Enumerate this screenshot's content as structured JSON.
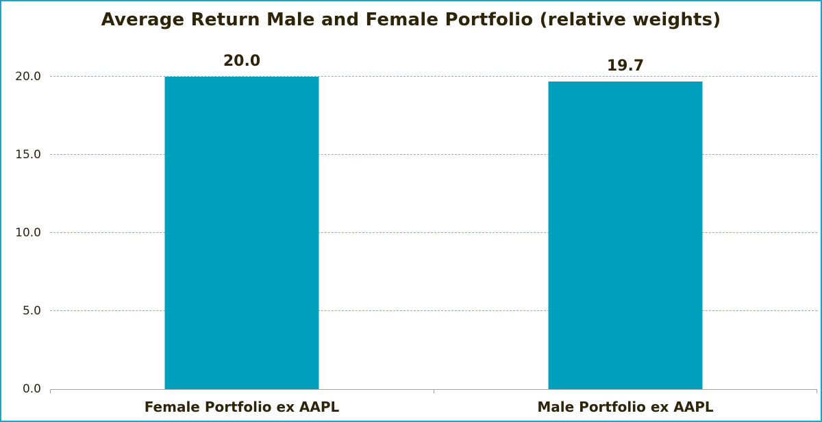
{
  "frame": {
    "border_color": "#18a6c7",
    "background_color": "#ffffff"
  },
  "chart_data": {
    "type": "bar",
    "title": "Average Return Male and Female Portfolio (relative weights)",
    "categories": [
      "Female Portfolio ex AAPL",
      "Male Portfolio ex AAPL"
    ],
    "values": [
      20.0,
      19.7
    ],
    "data_labels": [
      "20.0",
      "19.7"
    ],
    "y_tick_values": [
      0,
      5,
      10,
      15,
      20
    ],
    "y_tick_labels": [
      "0.0",
      "5.0",
      "10.0",
      "15.0",
      "20.0"
    ],
    "ylim": [
      0,
      20
    ],
    "xlabel": "",
    "ylabel": "",
    "legend": "none",
    "grid": "horizontal-dashed",
    "bar_color": "#00a0bc",
    "gridline_color": "#54c6db",
    "axis_color": "#a3a3a3",
    "text_color": "#2e2409"
  }
}
